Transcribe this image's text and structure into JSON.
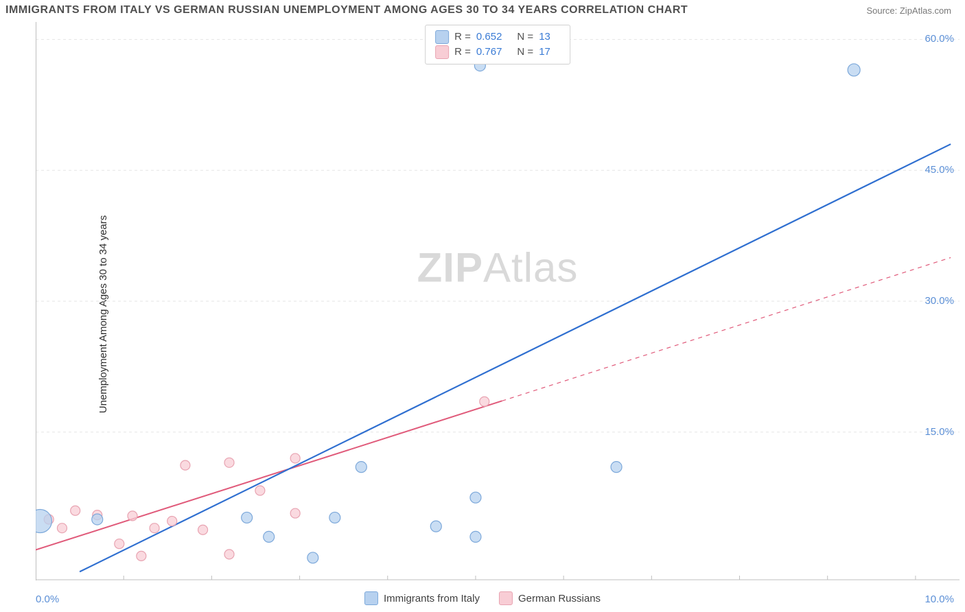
{
  "title": "IMMIGRANTS FROM ITALY VS GERMAN RUSSIAN UNEMPLOYMENT AMONG AGES 30 TO 34 YEARS CORRELATION CHART",
  "source": "Source: ZipAtlas.com",
  "ylabel": "Unemployment Among Ages 30 to 34 years",
  "watermark_a": "ZIP",
  "watermark_b": "Atlas",
  "colors": {
    "blue_fill": "#b7d1ef",
    "blue_stroke": "#7ca8da",
    "blue_line": "#2f6fd0",
    "pink_fill": "#f8cdd5",
    "pink_stroke": "#e8a3b1",
    "pink_line": "#e05a7a",
    "axis": "#bfbfbf",
    "grid": "#e6e6e6",
    "tick_text": "#5b8fd6",
    "bg": "#ffffff"
  },
  "axes": {
    "xmin": 0.0,
    "xmax": 10.5,
    "ymin": -2.0,
    "ymax": 62.0,
    "yticks": [
      15.0,
      30.0,
      45.0,
      60.0
    ],
    "ytick_labels": [
      "15.0%",
      "30.0%",
      "45.0%",
      "60.0%"
    ],
    "x_left_label": "0.0%",
    "x_right_label": "10.0%"
  },
  "top_legend": [
    {
      "swatch_fill": "#b7d1ef",
      "swatch_stroke": "#7ca8da",
      "r_label": "R =",
      "r_val": "0.652",
      "n_label": "N =",
      "n_val": "13"
    },
    {
      "swatch_fill": "#f8cdd5",
      "swatch_stroke": "#e8a3b1",
      "r_label": "R =",
      "r_val": "0.767",
      "n_label": "N =",
      "n_val": "17"
    }
  ],
  "bottom_legend": [
    {
      "swatch_fill": "#b7d1ef",
      "swatch_stroke": "#7ca8da",
      "label": "Immigrants from Italy"
    },
    {
      "swatch_fill": "#f8cdd5",
      "swatch_stroke": "#e8a3b1",
      "label": "German Russians"
    }
  ],
  "series": {
    "blue": {
      "color_fill": "#b7d1ef",
      "color_stroke": "#7ca8da",
      "line_color": "#2f6fd0",
      "line_width": 2.2,
      "line": {
        "x1": 0.5,
        "y1": -1.0,
        "x2": 10.4,
        "y2": 48.0
      },
      "points": [
        {
          "x": 0.05,
          "y": 4.8,
          "r": 17
        },
        {
          "x": 0.7,
          "y": 5.0,
          "r": 8
        },
        {
          "x": 2.4,
          "y": 5.2,
          "r": 8
        },
        {
          "x": 2.65,
          "y": 3.0,
          "r": 8
        },
        {
          "x": 3.4,
          "y": 5.2,
          "r": 8
        },
        {
          "x": 3.15,
          "y": 0.6,
          "r": 8
        },
        {
          "x": 3.7,
          "y": 11.0,
          "r": 8
        },
        {
          "x": 4.55,
          "y": 4.2,
          "r": 8
        },
        {
          "x": 5.0,
          "y": 3.0,
          "r": 8
        },
        {
          "x": 5.0,
          "y": 7.5,
          "r": 8
        },
        {
          "x": 5.05,
          "y": 57.0,
          "r": 8
        },
        {
          "x": 6.6,
          "y": 11.0,
          "r": 8
        },
        {
          "x": 9.3,
          "y": 56.5,
          "r": 9
        }
      ]
    },
    "pink": {
      "color_fill": "#f8cdd5",
      "color_stroke": "#e8a3b1",
      "line_color": "#e05a7a",
      "line_width": 2.0,
      "solid_to_x": 5.3,
      "line": {
        "x1": 0.0,
        "y1": 1.5,
        "x2": 10.4,
        "y2": 35.0
      },
      "points": [
        {
          "x": 0.15,
          "y": 5.0,
          "r": 7
        },
        {
          "x": 0.3,
          "y": 4.0,
          "r": 7
        },
        {
          "x": 0.45,
          "y": 6.0,
          "r": 7
        },
        {
          "x": 0.7,
          "y": 5.5,
          "r": 7
        },
        {
          "x": 0.95,
          "y": 2.2,
          "r": 7
        },
        {
          "x": 1.1,
          "y": 5.4,
          "r": 7
        },
        {
          "x": 1.2,
          "y": 0.8,
          "r": 7
        },
        {
          "x": 1.35,
          "y": 4.0,
          "r": 7
        },
        {
          "x": 1.55,
          "y": 4.8,
          "r": 7
        },
        {
          "x": 1.7,
          "y": 11.2,
          "r": 7
        },
        {
          "x": 1.9,
          "y": 3.8,
          "r": 7
        },
        {
          "x": 2.2,
          "y": 11.5,
          "r": 7
        },
        {
          "x": 2.2,
          "y": 1.0,
          "r": 7
        },
        {
          "x": 2.55,
          "y": 8.3,
          "r": 7
        },
        {
          "x": 2.95,
          "y": 12.0,
          "r": 7
        },
        {
          "x": 2.95,
          "y": 5.7,
          "r": 7
        },
        {
          "x": 5.1,
          "y": 18.5,
          "r": 7
        }
      ]
    }
  }
}
